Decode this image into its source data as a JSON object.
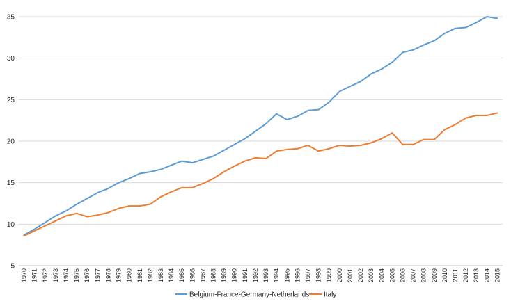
{
  "chart_data": {
    "type": "line",
    "title": "",
    "xlabel": "",
    "ylabel": "",
    "ylim": [
      5,
      35
    ],
    "yticks": [
      5,
      10,
      15,
      20,
      25,
      30,
      35
    ],
    "grid": true,
    "legend_position": "bottom",
    "categories": [
      "1970",
      "1971",
      "1972",
      "1973",
      "1974",
      "1975",
      "1976",
      "1977",
      "1978",
      "1979",
      "1980",
      "1981",
      "1982",
      "1983",
      "1984",
      "1985",
      "1986",
      "1987",
      "1988",
      "1989",
      "1990",
      "1991",
      "1992",
      "1993",
      "1994",
      "1995",
      "1996",
      "1997",
      "1998",
      "1999",
      "2000",
      "2001",
      "2002",
      "2003",
      "2004",
      "2005",
      "2006",
      "2007",
      "2008",
      "2009",
      "2010",
      "2011",
      "2012",
      "2013",
      "2014",
      "2015"
    ],
    "series": [
      {
        "name": "Belgium-France-Germany-Netherlands",
        "color": "#5b9bd5",
        "values": [
          8.7,
          9.4,
          10.2,
          11.0,
          11.6,
          12.4,
          13.1,
          13.8,
          14.3,
          15.0,
          15.5,
          16.1,
          16.3,
          16.6,
          17.1,
          17.6,
          17.4,
          17.8,
          18.2,
          18.9,
          19.6,
          20.3,
          21.2,
          22.1,
          23.3,
          22.6,
          23.0,
          23.7,
          23.8,
          24.7,
          26.0,
          26.6,
          27.2,
          28.1,
          28.7,
          29.5,
          30.7,
          31.0,
          31.6,
          32.1,
          33.0,
          33.6,
          33.7,
          34.3,
          35.0,
          34.8
        ]
      },
      {
        "name": "Italy",
        "color": "#ed7d31",
        "values": [
          8.6,
          9.2,
          9.8,
          10.4,
          11.0,
          11.3,
          10.9,
          11.1,
          11.4,
          11.9,
          12.2,
          12.2,
          12.4,
          13.3,
          13.9,
          14.4,
          14.4,
          14.9,
          15.5,
          16.3,
          17.0,
          17.6,
          18.0,
          17.9,
          18.8,
          19.0,
          19.1,
          19.5,
          18.8,
          19.1,
          19.5,
          19.4,
          19.5,
          19.8,
          20.3,
          21.0,
          19.6,
          19.6,
          20.2,
          20.2,
          21.4,
          22.0,
          22.8,
          23.1,
          23.1,
          23.4
        ]
      }
    ]
  }
}
